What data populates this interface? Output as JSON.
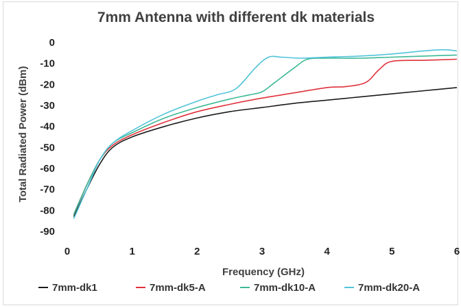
{
  "chart_data": {
    "type": "line",
    "title": "7mm Antenna with different dk materials",
    "xlabel": "Frequency (GHz)",
    "ylabel": "Total Radiated Power (dBm)",
    "xlim": [
      0,
      6
    ],
    "ylim": [
      -90,
      0
    ],
    "x_ticks": [
      "0",
      "1",
      "2",
      "3",
      "4",
      "5",
      "6"
    ],
    "y_ticks": [
      "0",
      "-10",
      "-20",
      "-30",
      "-40",
      "-50",
      "-60",
      "-70",
      "-80",
      "-90"
    ],
    "grid": false,
    "legend_position": "bottom",
    "series": [
      {
        "name": "7mm-dk1",
        "color": "#1a1a1a",
        "x": [
          0.1,
          0.3,
          0.5,
          0.7,
          1.0,
          1.5,
          2.0,
          2.5,
          3.0,
          3.5,
          4.0,
          4.5,
          5.0,
          5.5,
          6.0
        ],
        "y": [
          -83,
          -70,
          -58,
          -50,
          -45,
          -40,
          -36,
          -33,
          -31,
          -29,
          -27.5,
          -26,
          -24.5,
          -23,
          -21.5
        ]
      },
      {
        "name": "7mm-dk5-A",
        "color": "#e0303a",
        "x": [
          0.1,
          0.3,
          0.5,
          0.7,
          1.0,
          1.5,
          2.0,
          2.5,
          3.0,
          3.5,
          4.0,
          4.3,
          4.6,
          4.8,
          5.0,
          5.5,
          6.0
        ],
        "y": [
          -82,
          -68,
          -56,
          -49,
          -44,
          -38,
          -33,
          -29.5,
          -26.5,
          -24,
          -21.5,
          -21,
          -19,
          -13,
          -9,
          -8.5,
          -8
        ]
      },
      {
        "name": "7mm-dk10-A",
        "color": "#3cb896",
        "x": [
          0.1,
          0.3,
          0.5,
          0.7,
          1.0,
          1.5,
          2.0,
          2.5,
          2.8,
          3.0,
          3.2,
          3.5,
          3.7,
          4.0,
          4.5,
          5.0,
          5.5,
          6.0
        ],
        "y": [
          -82,
          -68,
          -56,
          -48,
          -43,
          -36,
          -31,
          -27,
          -25,
          -23.5,
          -19,
          -12,
          -8,
          -7.5,
          -7.5,
          -7,
          -6.5,
          -6
        ]
      },
      {
        "name": "7mm-dk20-A",
        "color": "#4fc3d9",
        "x": [
          0.1,
          0.3,
          0.5,
          0.7,
          1.0,
          1.5,
          2.0,
          2.3,
          2.6,
          2.9,
          3.1,
          3.3,
          3.6,
          4.0,
          4.5,
          5.0,
          5.5,
          5.8,
          6.0
        ],
        "y": [
          -84,
          -70,
          -56,
          -48,
          -42,
          -34,
          -28,
          -25,
          -22,
          -12,
          -7,
          -7,
          -7.5,
          -7,
          -6.5,
          -5.5,
          -4,
          -3.5,
          -4
        ]
      }
    ]
  }
}
